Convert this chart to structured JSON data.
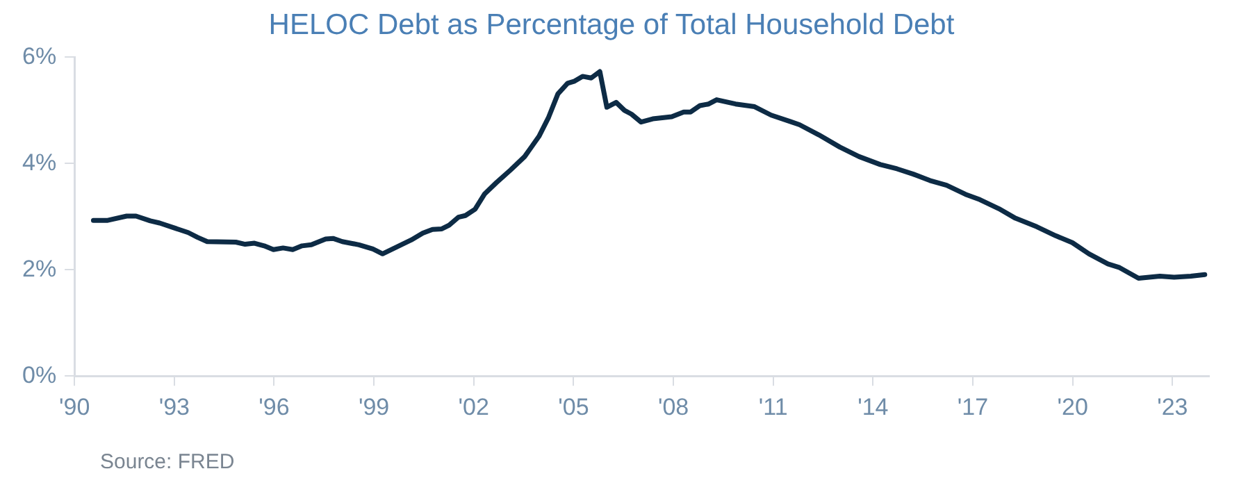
{
  "chart_data": {
    "type": "line",
    "title": "HELOC Debt as Percentage of Total Household Debt",
    "annotations": [
      "Source: FRED"
    ],
    "x": [
      1990.57,
      1991.0,
      1991.57,
      1991.85,
      1992.28,
      1992.56,
      1992.99,
      1993.42,
      1993.7,
      1993.99,
      1994.85,
      1995.13,
      1995.41,
      1995.7,
      1995.98,
      1996.27,
      1996.56,
      1996.84,
      1997.12,
      1997.55,
      1997.77,
      1998.05,
      1998.55,
      1998.97,
      1999.26,
      1999.69,
      2000.12,
      2000.47,
      2000.76,
      2001.04,
      2001.26,
      2001.54,
      2001.75,
      2002.04,
      2002.33,
      2002.68,
      2003.11,
      2003.53,
      2003.96,
      2004.25,
      2004.53,
      2004.82,
      2005.03,
      2005.27,
      2005.53,
      2005.79,
      2006.0,
      2006.28,
      2006.53,
      2006.74,
      2007.03,
      2007.38,
      2007.95,
      2008.31,
      2008.52,
      2008.8,
      2009.06,
      2009.3,
      2009.87,
      2010.44,
      2010.94,
      2011.51,
      2011.79,
      2012.37,
      2013.0,
      2013.58,
      2014.22,
      2014.72,
      2015.21,
      2015.71,
      2016.21,
      2016.78,
      2017.21,
      2017.78,
      2018.28,
      2018.92,
      2019.49,
      2019.99,
      2020.49,
      2021.06,
      2021.41,
      2021.98,
      2022.62,
      2023.05,
      2023.55,
      2023.97
    ],
    "series": [
      {
        "color": "#0d2b45",
        "values": [
          2.93,
          2.93,
          3.01,
          3.01,
          2.92,
          2.88,
          2.79,
          2.7,
          2.61,
          2.53,
          2.52,
          2.48,
          2.5,
          2.45,
          2.38,
          2.41,
          2.38,
          2.45,
          2.47,
          2.58,
          2.59,
          2.53,
          2.47,
          2.39,
          2.3,
          2.43,
          2.56,
          2.69,
          2.76,
          2.77,
          2.84,
          2.99,
          3.02,
          3.14,
          3.43,
          3.64,
          3.88,
          4.13,
          4.51,
          4.87,
          5.31,
          5.51,
          5.55,
          5.64,
          5.61,
          5.73,
          5.06,
          5.15,
          5.0,
          4.93,
          4.78,
          4.84,
          4.88,
          4.97,
          4.97,
          5.09,
          5.12,
          5.2,
          5.12,
          5.07,
          4.91,
          4.79,
          4.73,
          4.54,
          4.31,
          4.13,
          3.98,
          3.9,
          3.8,
          3.68,
          3.59,
          3.42,
          3.32,
          3.15,
          2.97,
          2.81,
          2.64,
          2.51,
          2.3,
          2.11,
          2.04,
          1.84,
          1.88,
          1.86,
          1.88,
          1.91
        ]
      }
    ],
    "xlim": [
      1990,
      2024.1
    ],
    "xticks": [
      {
        "value": 1990,
        "label": "'90"
      },
      {
        "value": 1993,
        "label": "'93"
      },
      {
        "value": 1996,
        "label": "'96"
      },
      {
        "value": 1999,
        "label": "'99"
      },
      {
        "value": 2002,
        "label": "'02"
      },
      {
        "value": 2005,
        "label": "'05"
      },
      {
        "value": 2008,
        "label": "'08"
      },
      {
        "value": 2011,
        "label": "'11"
      },
      {
        "value": 2014,
        "label": "'14"
      },
      {
        "value": 2017,
        "label": "'17"
      },
      {
        "value": 2020,
        "label": "'20"
      },
      {
        "value": 2023,
        "label": "'23"
      }
    ],
    "ylim": [
      0,
      6
    ],
    "yticks": [
      {
        "value": 0,
        "label": "0%"
      },
      {
        "value": 2,
        "label": "2%"
      },
      {
        "value": 4,
        "label": "4%"
      },
      {
        "value": 6,
        "label": "6%"
      }
    ],
    "grid": false,
    "legend": false,
    "marker": "none",
    "line_style": "solid"
  }
}
